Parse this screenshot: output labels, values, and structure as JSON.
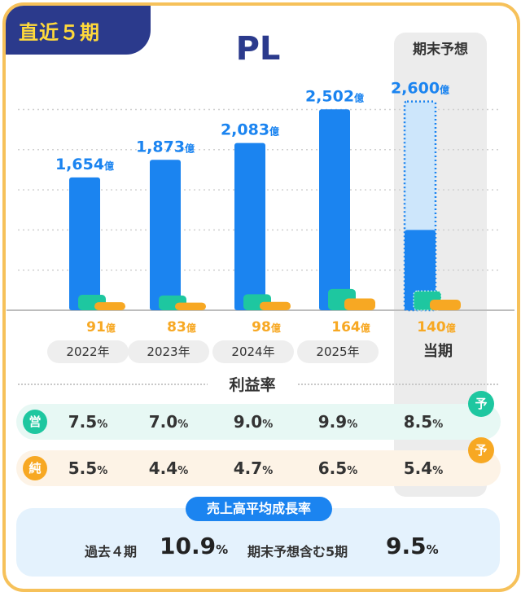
{
  "badge": "直近５期",
  "title": "PL",
  "forecast_header": "期末予想",
  "colors": {
    "sales": "#1b84f0",
    "sales_forecast_fill": "#cde6fb",
    "operating": "#1ec7a0",
    "net": "#f7a823",
    "navy": "#2b3a8c",
    "gold": "#f6c15a"
  },
  "chart_data": {
    "type": "bar",
    "categories": [
      "2022年",
      "2023年",
      "2024年",
      "2025年",
      "当期"
    ],
    "series": [
      {
        "name": "",
        "values": [
          1654,
          1873,
          2083,
          2502,
          2600
        ]
      },
      {
        "name": "",
        "values": [
          null,
          null,
          null,
          null,
          null
        ]
      },
      {
        "name": "",
        "values": [
          91,
          83,
          98,
          164,
          140
        ]
      }
    ],
    "sales_labels": [
      "1,654",
      "1,873",
      "2,083",
      "2,502",
      "2,600"
    ],
    "profit_labels": [
      "91",
      "83",
      "98",
      "164",
      "140"
    ],
    "unit": "億",
    "forecast_index": 4,
    "forecast_actual_partial": 1000,
    "ylim": [
      0,
      2900
    ],
    "grid": true
  },
  "profit_rate": {
    "title": "利益率",
    "operating": {
      "icon": "営",
      "values": [
        "7.5",
        "7.0",
        "9.0",
        "9.9",
        "8.5"
      ]
    },
    "net": {
      "icon": "純",
      "values": [
        "5.5",
        "4.4",
        "4.7",
        "6.5",
        "5.4"
      ]
    },
    "percent": "%",
    "forecast_mark": "予"
  },
  "growth": {
    "title": "売上高平均成長率",
    "past_label": "過去４期",
    "past_value": "10.9",
    "forecast_label": "期末予想含む5期",
    "forecast_value": "9.5",
    "percent": "%"
  }
}
